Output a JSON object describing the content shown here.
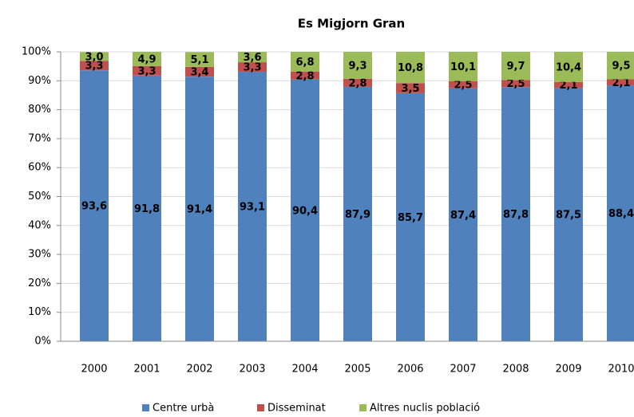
{
  "chart_data": {
    "type": "stacked_bar",
    "title": "Es Migjorn Gran",
    "categories": [
      "2000",
      "2001",
      "2002",
      "2003",
      "2004",
      "2005",
      "2006",
      "2007",
      "2008",
      "2009",
      "2010"
    ],
    "series": [
      {
        "name": "Centre urbà",
        "color": "#4f81bd",
        "values": [
          93.6,
          91.8,
          91.4,
          93.1,
          90.4,
          87.9,
          85.7,
          87.4,
          87.8,
          87.5,
          88.4
        ],
        "value_labels": [
          "93,6",
          "91,8",
          "91,4",
          "93,1",
          "90,4",
          "87,9",
          "85,7",
          "87,4",
          "87,8",
          "87,5",
          "88,4"
        ]
      },
      {
        "name": "Disseminat",
        "color": "#c0504d",
        "values": [
          3.3,
          3.3,
          3.4,
          3.3,
          2.8,
          2.8,
          3.5,
          2.5,
          2.5,
          2.1,
          2.1
        ],
        "value_labels": [
          "3,3",
          "3,3",
          "3,4",
          "3,3",
          "2,8",
          "2,8",
          "3,5",
          "2,5",
          "2,5",
          "2,1",
          "2,1"
        ]
      },
      {
        "name": "Altres nuclis població",
        "color": "#9bbb59",
        "values": [
          3.0,
          4.9,
          5.1,
          3.6,
          6.8,
          9.3,
          10.8,
          10.1,
          9.7,
          10.4,
          9.5
        ],
        "value_labels": [
          "3,0",
          "4,9",
          "5,1",
          "3,6",
          "6,8",
          "9,3",
          "10,8",
          "10,1",
          "9,7",
          "10,4",
          "9,5"
        ]
      }
    ],
    "ylim": [
      0,
      100
    ],
    "yticks": [
      {
        "value": 0,
        "label": "0%"
      },
      {
        "value": 10,
        "label": "10%"
      },
      {
        "value": 20,
        "label": "20%"
      },
      {
        "value": 30,
        "label": "30%"
      },
      {
        "value": 40,
        "label": "40%"
      },
      {
        "value": 50,
        "label": "50%"
      },
      {
        "value": 60,
        "label": "60%"
      },
      {
        "value": 70,
        "label": "70%"
      },
      {
        "value": 80,
        "label": "80%"
      },
      {
        "value": 90,
        "label": "90%"
      },
      {
        "value": 100,
        "label": "100%"
      }
    ],
    "grid": true,
    "legend": "bottom"
  }
}
